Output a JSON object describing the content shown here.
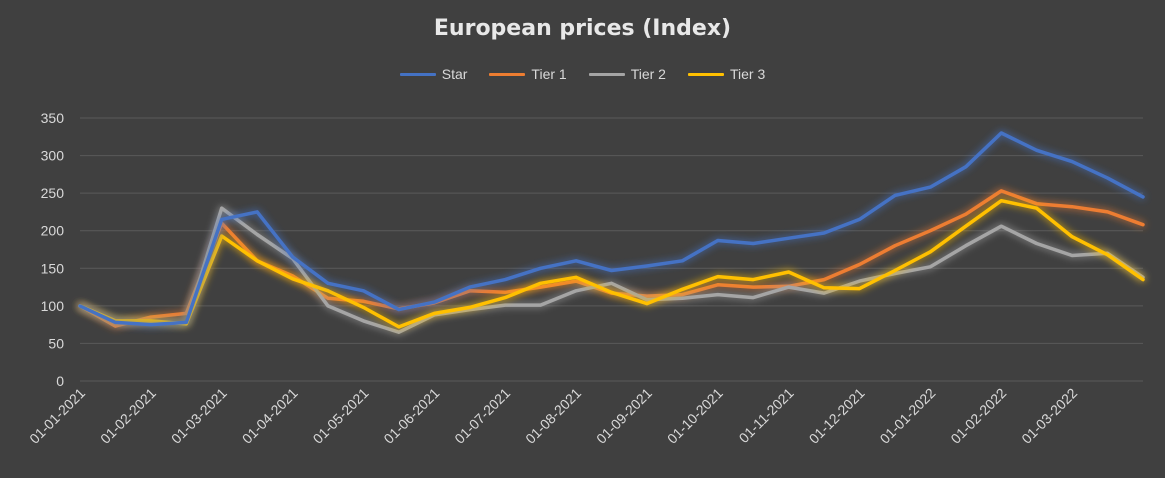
{
  "chart_data": {
    "type": "line",
    "title": "European prices (Index)",
    "ylim": [
      0,
      350
    ],
    "yticks": [
      0,
      50,
      100,
      150,
      200,
      250,
      300,
      350
    ],
    "xtick_labels": [
      "01-01-2021",
      "01-02-2021",
      "01-03-2021",
      "01-04-2021",
      "01-05-2021",
      "01-06-2021",
      "01-07-2021",
      "01-08-2021",
      "01-09-2021",
      "01-10-2021",
      "01-11-2021",
      "01-12-2021",
      "01-01-2022",
      "01-02-2022",
      "01-03-2022"
    ],
    "x": [
      "01-01-2021",
      "15-01-2021",
      "01-02-2021",
      "15-02-2021",
      "01-03-2021",
      "15-03-2021",
      "01-04-2021",
      "15-04-2021",
      "01-05-2021",
      "15-05-2021",
      "01-06-2021",
      "15-06-2021",
      "01-07-2021",
      "15-07-2021",
      "01-08-2021",
      "15-08-2021",
      "01-09-2021",
      "15-09-2021",
      "01-10-2021",
      "15-10-2021",
      "01-11-2021",
      "15-11-2021",
      "01-12-2021",
      "15-12-2021",
      "01-01-2022",
      "15-01-2022",
      "01-02-2022",
      "15-02-2022",
      "01-03-2022",
      "15-03-2022",
      "01-04-2022"
    ],
    "grid": true,
    "legend_position": "top",
    "series": [
      {
        "name": "Star",
        "color": "#4472C4",
        "values": [
          100,
          78,
          75,
          78,
          215,
          225,
          165,
          130,
          120,
          95,
          105,
          125,
          135,
          150,
          160,
          147,
          153,
          160,
          187,
          183,
          190,
          197,
          215,
          247,
          258,
          285,
          330,
          307,
          292,
          270,
          245
        ]
      },
      {
        "name": "Tier 1",
        "color": "#ED7D31",
        "values": [
          100,
          73,
          85,
          90,
          210,
          160,
          140,
          110,
          106,
          96,
          104,
          120,
          118,
          125,
          133,
          117,
          113,
          115,
          128,
          125,
          126,
          135,
          155,
          180,
          200,
          222,
          253,
          236,
          232,
          225,
          208
        ]
      },
      {
        "name": "Tier 2",
        "color": "#A5A5A5",
        "values": [
          100,
          80,
          78,
          77,
          230,
          195,
          163,
          100,
          80,
          65,
          88,
          95,
          101,
          101,
          120,
          130,
          108,
          110,
          115,
          111,
          125,
          117,
          133,
          143,
          152,
          180,
          206,
          183,
          167,
          170,
          138
        ]
      },
      {
        "name": "Tier 3",
        "color": "#FFC000",
        "values": [
          100,
          80,
          80,
          76,
          193,
          160,
          136,
          120,
          98,
          72,
          90,
          98,
          111,
          130,
          138,
          118,
          103,
          122,
          139,
          135,
          145,
          124,
          123,
          147,
          172,
          206,
          240,
          230,
          192,
          168,
          135
        ]
      }
    ]
  }
}
